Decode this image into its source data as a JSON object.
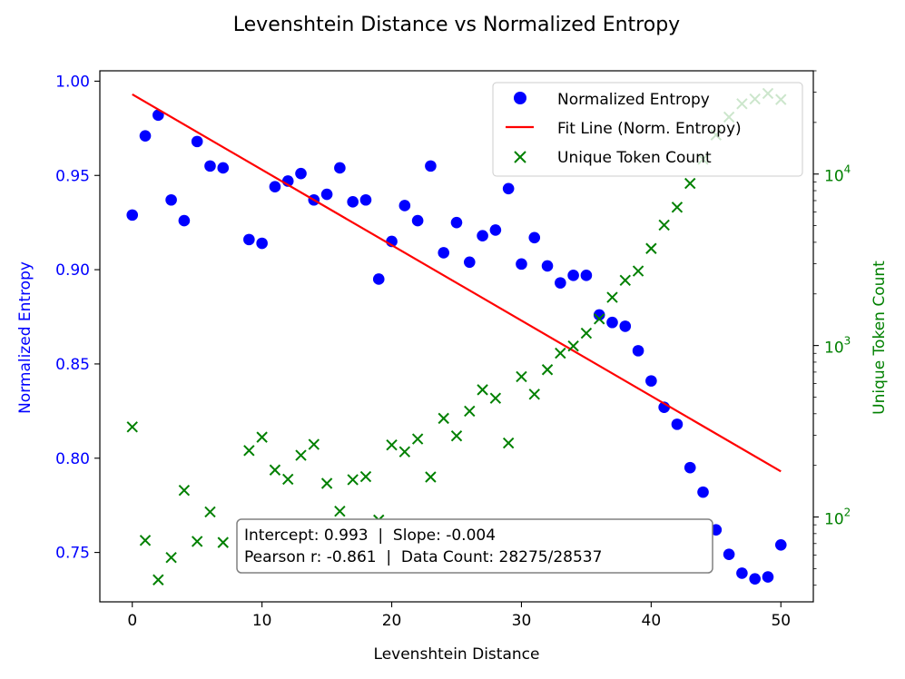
{
  "chart_data": {
    "type": "scatter",
    "title": "Levenshtein Distance vs Normalized Entropy",
    "xlabel": "Levenshtein Distance",
    "ylabel_left": "Normalized Entropy",
    "ylabel_right": "Unique Token Count",
    "xlim": [
      -2.5,
      52.5
    ],
    "ylim_left": [
      0.7238,
      1.0055
    ],
    "ylim_right_log": [
      32,
      40000
    ],
    "x_ticks": [
      0,
      10,
      20,
      30,
      40,
      50
    ],
    "y_left_ticks": [
      0.75,
      0.8,
      0.85,
      0.9,
      0.95,
      1.0
    ],
    "y_right_ticks": [
      {
        "value": 100,
        "label": "10^2"
      },
      {
        "value": 1000,
        "label": "10^3"
      },
      {
        "value": 10000,
        "label": "10^4"
      }
    ],
    "colors": {
      "entropy": "#0000ff",
      "fit": "#ff0000",
      "tokens": "#008000"
    },
    "series": [
      {
        "name": "Normalized Entropy",
        "axis": "left",
        "marker": "circle",
        "x": [
          0,
          1,
          2,
          3,
          4,
          5,
          6,
          7,
          9,
          10,
          11,
          12,
          13,
          14,
          15,
          16,
          17,
          18,
          19,
          20,
          21,
          22,
          23,
          24,
          25,
          26,
          27,
          28,
          29,
          30,
          31,
          32,
          33,
          34,
          35,
          36,
          37,
          38,
          39,
          40,
          41,
          42,
          43,
          44,
          45,
          46,
          47,
          48,
          49,
          50
        ],
        "y": [
          0.929,
          0.971,
          0.982,
          0.937,
          0.926,
          0.968,
          0.955,
          0.954,
          0.916,
          0.914,
          0.944,
          0.947,
          0.951,
          0.937,
          0.94,
          0.954,
          0.936,
          0.937,
          0.895,
          0.915,
          0.934,
          0.926,
          0.955,
          0.909,
          0.925,
          0.904,
          0.918,
          0.921,
          0.943,
          0.903,
          0.917,
          0.902,
          0.893,
          0.897,
          0.897,
          0.876,
          0.872,
          0.87,
          0.857,
          0.841,
          0.827,
          0.818,
          0.795,
          0.782,
          0.762,
          0.749,
          0.739,
          0.736,
          0.737,
          0.754
        ]
      },
      {
        "name": "Fit Line (Norm. Entropy)",
        "axis": "left",
        "marker": "line",
        "x": [
          0,
          50
        ],
        "y": [
          0.993,
          0.793
        ]
      },
      {
        "name": "Unique Token Count",
        "axis": "right",
        "marker": "x",
        "x": [
          0,
          1,
          2,
          3,
          4,
          5,
          6,
          7,
          9,
          10,
          11,
          12,
          13,
          14,
          15,
          16,
          17,
          18,
          19,
          20,
          21,
          22,
          23,
          24,
          25,
          26,
          27,
          28,
          29,
          30,
          31,
          32,
          33,
          34,
          35,
          36,
          37,
          38,
          39,
          40,
          41,
          42,
          43,
          44,
          45,
          46,
          47,
          48,
          49,
          50
        ],
        "y": [
          335,
          73,
          43,
          58,
          143,
          72,
          107,
          71,
          244,
          292,
          188,
          166,
          229,
          265,
          157,
          108,
          165,
          172,
          96,
          263,
          240,
          285,
          171,
          376,
          297,
          414,
          552,
          493,
          270,
          658,
          520,
          723,
          902,
          993,
          1180,
          1430,
          1910,
          2400,
          2720,
          3680,
          5040,
          6400,
          8820,
          12200,
          16900,
          21500,
          25700,
          27400,
          29500,
          27200
        ]
      }
    ],
    "legend": {
      "position": "top-right",
      "entries": [
        {
          "label": "Normalized Entropy",
          "marker": "circle"
        },
        {
          "label": "Fit Line (Norm. Entropy)",
          "marker": "line"
        },
        {
          "label": "Unique Token Count",
          "marker": "x"
        }
      ]
    },
    "annotation": {
      "line1": "Intercept: 0.993  |  Slope: -0.004",
      "line2": "Pearson r: -0.861  |  Data Count: 28275/28537"
    }
  }
}
